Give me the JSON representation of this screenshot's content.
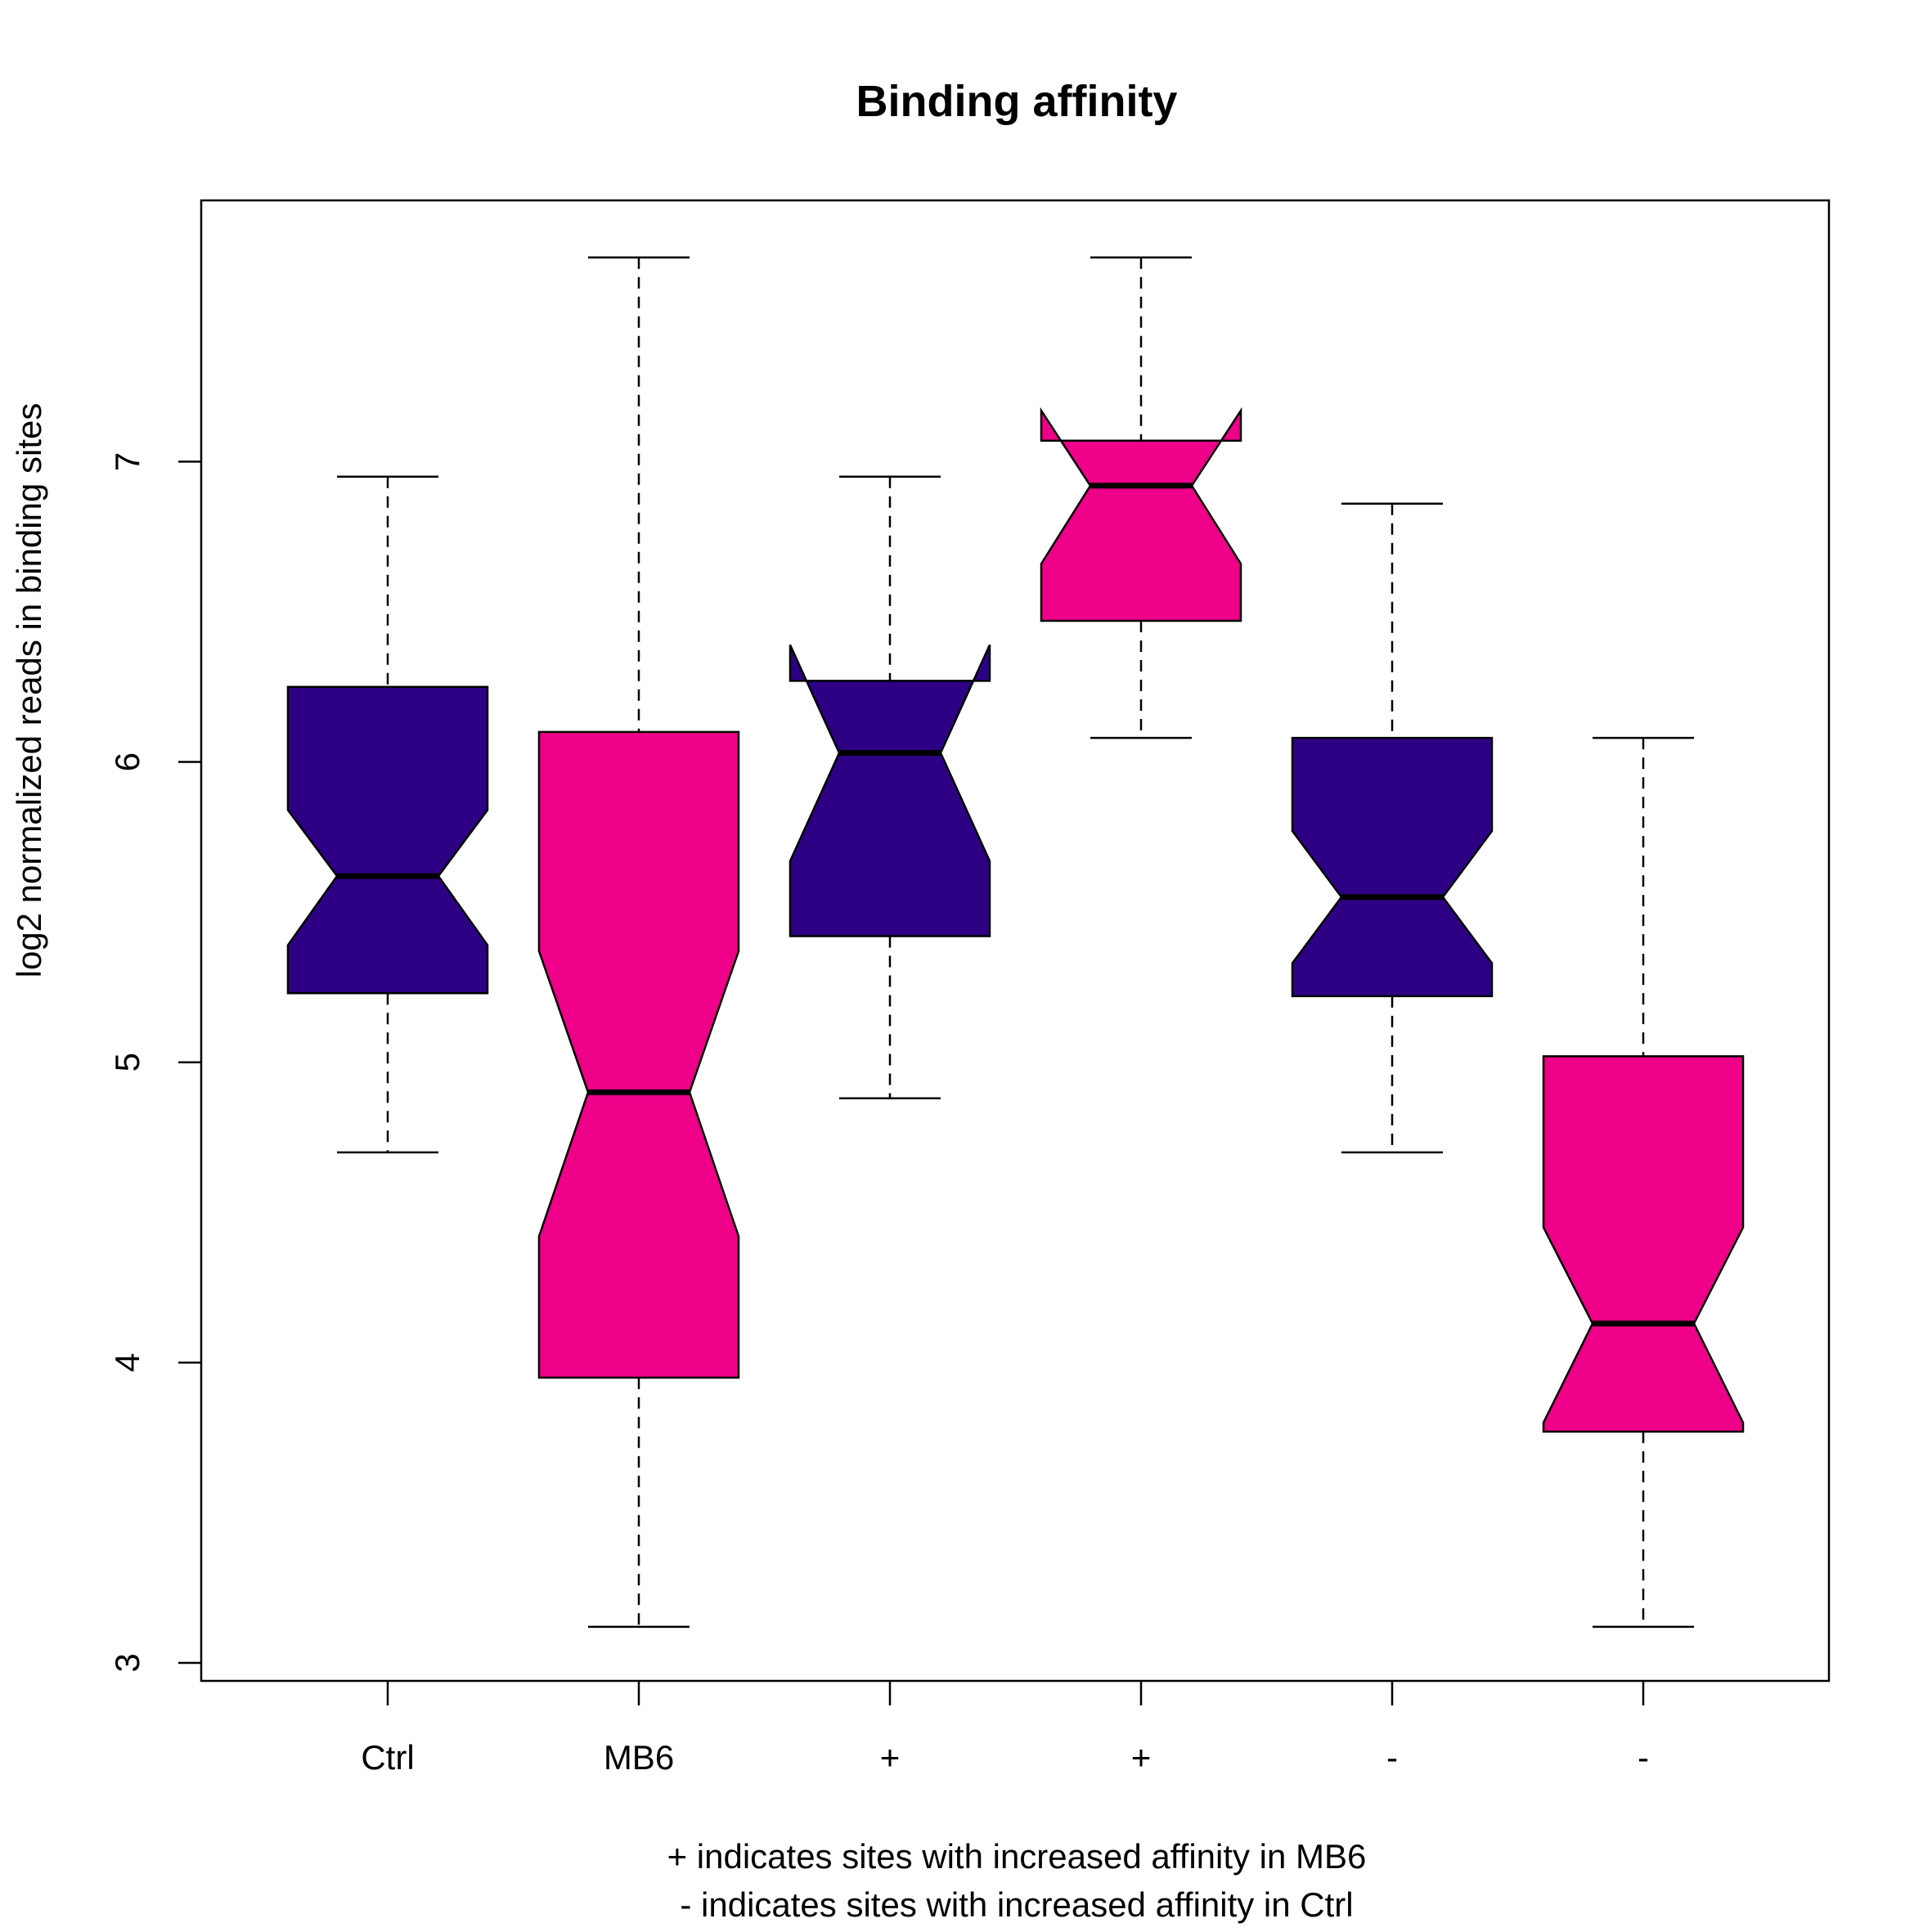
{
  "chart_data": {
    "type": "boxplot",
    "notched": true,
    "title": "Binding affinity",
    "ylabel": "log2 normalized reads in binding sites",
    "xlabel_lines": [
      "+ indicates sites with increased affinity in MB6",
      "- indicates sites with increased affinity in Ctrl"
    ],
    "categories": [
      "Ctrl",
      "MB6",
      "+",
      "+",
      "-",
      "-"
    ],
    "ylim": [
      2.94,
      7.87
    ],
    "yticks": [
      3,
      4,
      5,
      6,
      7
    ],
    "grid": false,
    "legend": "none",
    "colors": {
      "Ctrl": "#2e0084",
      "MB6": "#ee0088",
      "stroke": "#000000",
      "axis": "#000000"
    },
    "boxes": [
      {
        "label": "Ctrl",
        "group": "Ctrl",
        "whisker_low": 4.7,
        "q1": 5.23,
        "median": 5.62,
        "q3": 6.25,
        "whisker_high": 6.95,
        "notch_low": 5.39,
        "notch_high": 5.84
      },
      {
        "label": "MB6",
        "group": "MB6",
        "whisker_low": 3.12,
        "q1": 3.95,
        "median": 4.9,
        "q3": 6.1,
        "whisker_high": 7.68,
        "notch_low": 4.42,
        "notch_high": 5.37
      },
      {
        "label": "+",
        "group": "Ctrl",
        "whisker_low": 4.88,
        "q1": 5.42,
        "median": 6.03,
        "q3": 6.27,
        "whisker_high": 6.95,
        "notch_low": 5.67,
        "notch_high": 6.39
      },
      {
        "label": "+",
        "group": "MB6",
        "whisker_low": 6.08,
        "q1": 6.47,
        "median": 6.92,
        "q3": 7.07,
        "whisker_high": 7.68,
        "notch_low": 6.66,
        "notch_high": 7.17
      },
      {
        "label": "-",
        "group": "Ctrl",
        "whisker_low": 4.7,
        "q1": 5.22,
        "median": 5.55,
        "q3": 6.08,
        "whisker_high": 6.86,
        "notch_low": 5.33,
        "notch_high": 5.77
      },
      {
        "label": "-",
        "group": "MB6",
        "whisker_low": 3.12,
        "q1": 3.77,
        "median": 4.13,
        "q3": 5.02,
        "whisker_high": 6.08,
        "notch_low": 3.8,
        "notch_high": 4.45
      }
    ]
  }
}
